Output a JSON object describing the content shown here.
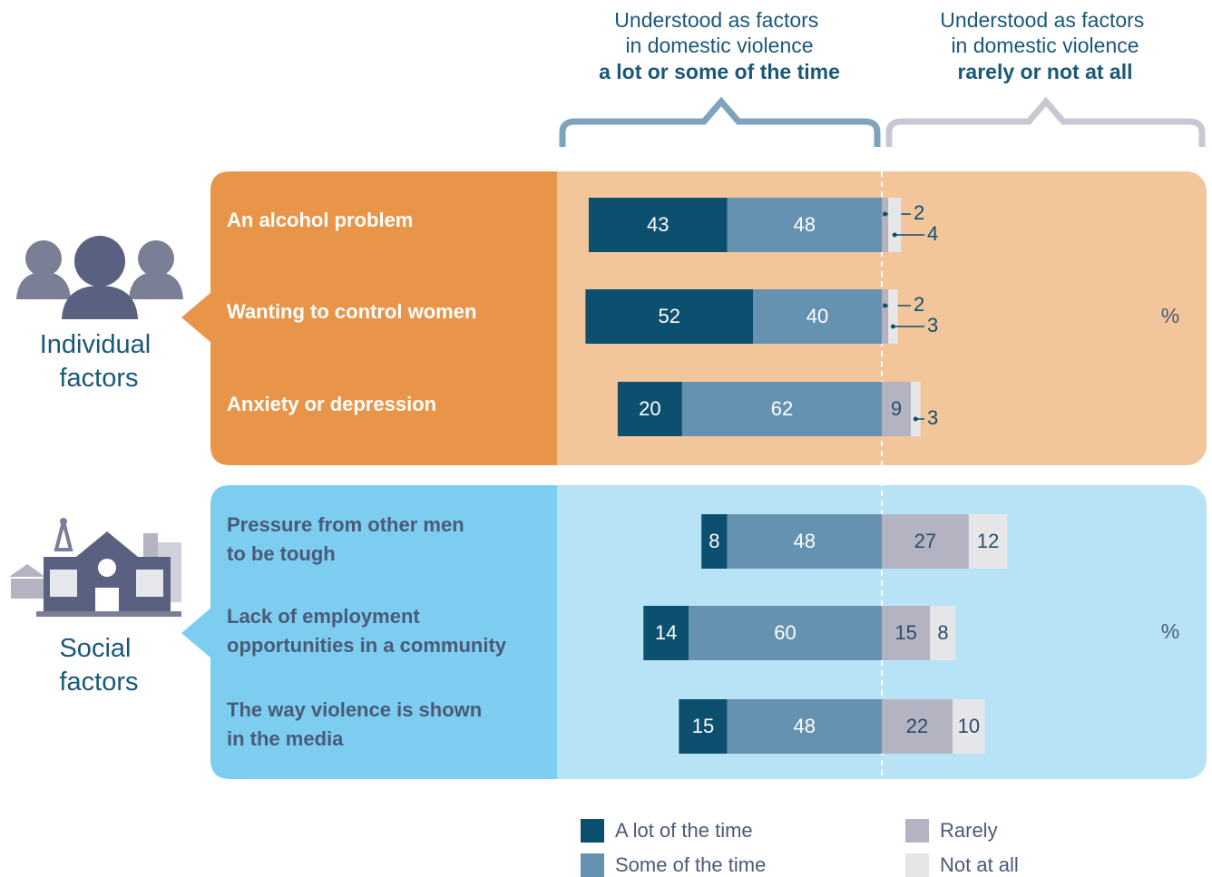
{
  "chart_data": {
    "type": "diverging_bar",
    "headers": [
      {
        "text": "Understood as factors in domestic violence",
        "emphasis": "a lot or some of the time"
      },
      {
        "text": "Understood as factors in domestic violence",
        "emphasis": "rarely or not at all"
      }
    ],
    "groups": [
      {
        "label": "Individual factors",
        "unit": "%"
      },
      {
        "label": "Social factors",
        "unit": "%"
      }
    ],
    "categories": [
      "An alcohol problem",
      "Wanting to control women",
      "Anxiety or depression",
      "Pressure from other men to be tough",
      "Lack of employment opportunities in a community",
      "The way violence is shown in the media"
    ],
    "series": [
      {
        "name": "A lot of the time",
        "color": "#0d4f6e",
        "values": [
          43,
          52,
          20,
          8,
          14,
          15
        ]
      },
      {
        "name": "Some of the time",
        "color": "#6592b0",
        "values": [
          48,
          40,
          62,
          48,
          60,
          48
        ]
      },
      {
        "name": "Rarely",
        "color": "#b3b3c1",
        "values": [
          2,
          2,
          9,
          27,
          15,
          22
        ]
      },
      {
        "name": "Not at all",
        "color": "#e6e6e8",
        "values": [
          4,
          3,
          3,
          12,
          8,
          10
        ]
      }
    ]
  }
}
